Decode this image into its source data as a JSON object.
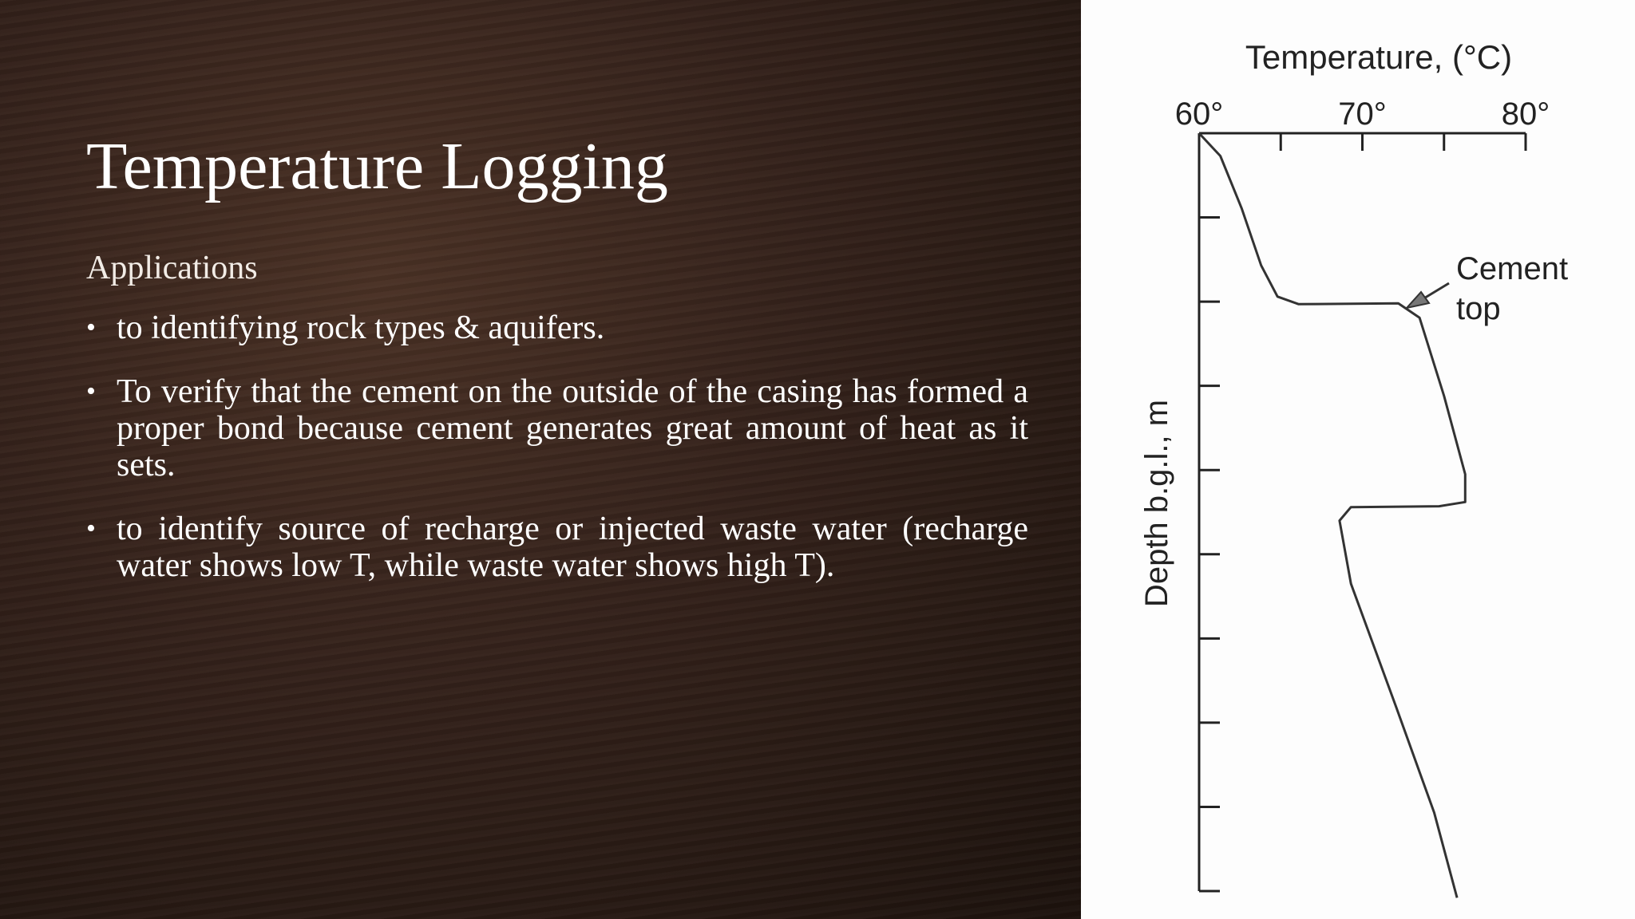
{
  "slide": {
    "title": "Temperature Logging",
    "subtitle": "Applications",
    "bullets": [
      "to identifying rock types & aquifers.",
      "To verify that the cement on the outside of the casing has formed a proper bond because cement generates great amount of heat as it sets.",
      "to identify source of recharge or injected waste water (recharge water shows low T, while waste water shows high T)."
    ]
  },
  "chart_data": {
    "type": "line",
    "x_label": "Temperature, (°C)",
    "y_label": "Depth b.g.l., m",
    "x": [
      60,
      61.3,
      62.6,
      63.8,
      64.8,
      66.1,
      72.2,
      73.5,
      75.0,
      76.3,
      76.3,
      74.7,
      69.3,
      68.6,
      69.3,
      72.1,
      74.4,
      75.8
    ],
    "values": [
      0,
      0.27,
      0.89,
      1.57,
      1.94,
      2.03,
      2.02,
      2.19,
      3.12,
      4.05,
      4.38,
      4.43,
      4.44,
      4.6,
      5.35,
      6.83,
      8.07,
      9.08
    ],
    "color": "#333333",
    "xlim": [
      60,
      80
    ],
    "xticks": [
      {
        "value": 60,
        "label": "60°"
      },
      {
        "value": 70,
        "label": "70°"
      },
      {
        "value": 80,
        "label": "80°"
      }
    ],
    "xminorticks": [
      65,
      75
    ],
    "ylim": [
      0,
      9
    ],
    "yticks": [
      1,
      2,
      3,
      4,
      5,
      6,
      7,
      8,
      9
    ],
    "y_reversed": true,
    "annotation": [
      "Cement",
      "top"
    ]
  }
}
